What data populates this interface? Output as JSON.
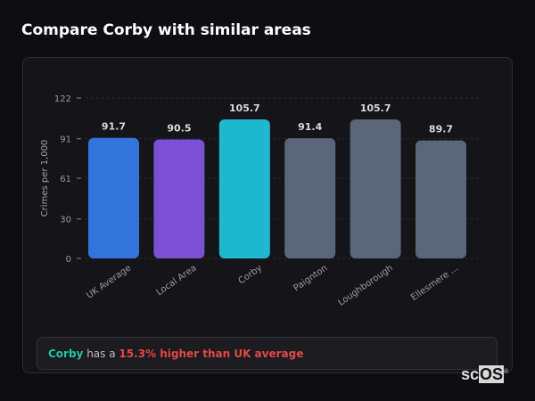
{
  "header": {
    "title": "Compare Corby with similar areas"
  },
  "chart_data": {
    "type": "bar",
    "categories": [
      "UK Average",
      "Local Area",
      "Corby",
      "Paignton",
      "Loughborough",
      "Ellesmere ..."
    ],
    "values": [
      91.7,
      90.5,
      105.7,
      91.4,
      105.7,
      89.7
    ],
    "value_labels": [
      "91.7",
      "90.5",
      "105.7",
      "91.4",
      "105.7",
      "89.7"
    ],
    "colors": [
      "#3374db",
      "#7b50d6",
      "#1fb8cf",
      "#5a6679",
      "#5a6679",
      "#5a6679"
    ],
    "ylabel": "Crimes per 1,000",
    "xlabel": "",
    "yticks": [
      0,
      30,
      61,
      91,
      122
    ],
    "ylim": [
      0,
      122
    ],
    "grid": true
  },
  "summary": {
    "area": "Corby",
    "middle": " has a ",
    "highlight": "15.3% higher than UK average"
  },
  "watermark": {
    "text": "scOS"
  }
}
